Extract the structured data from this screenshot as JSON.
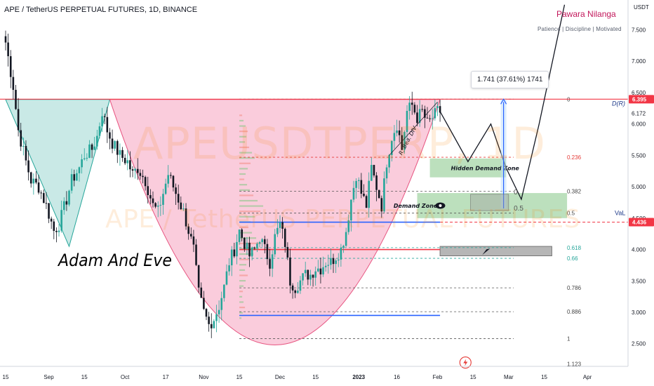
{
  "header": {
    "symbol_title": "APE / TetherUS PERPETUAL FUTURES, 1D, BINANCE",
    "author": "Pawara Nilanga",
    "motto": "Patience | Discipline | Motivated"
  },
  "watermark": {
    "line1": "APEUSDTPERP, 1D",
    "line2": "APE / TetherUS PERPETUAL FUTURES"
  },
  "annotations": {
    "pattern_label": "Adam And Eve",
    "measure_label": "1.741 (37.61%) 1741",
    "hidden_demand_zone": "Hidden Demand Zone",
    "demand_zone": "Demand Zone",
    "divergence_label": "R. Bea. DIV",
    "dr_label": "D(R)",
    "val_label": "VaL",
    "zone_mini_0": "0",
    "zone_mini_05": "0.5"
  },
  "colors": {
    "up": "#26a69a",
    "down": "#131722",
    "cup_fill": "#f8bbd0",
    "cup_stroke": "#e75480",
    "adam_fill": "#b2dfdb",
    "resistance": "#f23645",
    "support_blue": "#2962ff",
    "demand_zone": "#a5d6a7"
  },
  "chart_data": {
    "type": "candlestick",
    "title": "APE / TetherUS PERPETUAL FUTURES, 1D, BINANCE",
    "xlabel": "",
    "ylabel": "USDT",
    "ylim": [
      2.2,
      7.8
    ],
    "y_ticks": [
      "7.500",
      "7.000",
      "6.500",
      "6.172",
      "6.000",
      "5.500",
      "5.000",
      "4.500",
      "4.000",
      "3.500",
      "3.000",
      "2.500"
    ],
    "x_ticks": [
      "15",
      "Sep",
      "15",
      "Oct",
      "17",
      "Nov",
      "15",
      "Dec",
      "15",
      "2023",
      "16",
      "Feb",
      "15",
      "Mar",
      "15",
      "Apr"
    ],
    "x_domain_days": [
      0,
      245
    ],
    "x_tick_days": [
      0,
      17,
      31,
      47,
      63,
      78,
      92,
      108,
      122,
      139,
      154,
      170,
      184,
      198,
      212,
      229
    ],
    "price_labels": [
      {
        "value": 6.395,
        "text": "6.395",
        "color": "#f23645"
      },
      {
        "value": 4.436,
        "text": "4.436",
        "color": "#f23645"
      }
    ],
    "fib_levels": [
      {
        "ratio": "0",
        "price": 6.395
      },
      {
        "ratio": "0.236",
        "price": 5.47
      },
      {
        "ratio": "0.382",
        "price": 4.93
      },
      {
        "ratio": "0.5",
        "price": 4.58
      },
      {
        "ratio": "0.618",
        "price": 4.03
      },
      {
        "ratio": "0.66",
        "price": 3.86
      },
      {
        "ratio": "0.786",
        "price": 3.39
      },
      {
        "ratio": "0.886",
        "price": 3.01
      },
      {
        "ratio": "1",
        "price": 2.58
      },
      {
        "ratio": "1.123",
        "price": 2.18
      }
    ],
    "series": [
      {
        "kind": "close_path",
        "x_days": [
          0,
          3,
          5,
          8,
          10,
          13,
          16,
          19,
          21,
          24,
          26,
          29,
          31,
          34,
          36,
          38,
          40,
          42,
          45,
          48,
          50,
          52,
          55,
          58,
          60,
          62,
          64,
          66,
          68,
          70,
          72,
          74,
          76,
          78,
          80,
          82,
          84,
          86,
          88,
          90,
          92,
          94,
          96,
          98,
          100,
          102,
          104,
          106,
          108,
          110,
          112,
          114,
          116,
          118,
          120,
          122,
          124,
          126,
          128,
          130,
          132,
          134,
          136,
          138,
          140,
          142,
          144,
          146,
          148,
          150,
          152,
          154,
          156,
          158,
          160,
          162,
          164,
          166,
          168,
          170,
          171
        ],
        "close": [
          7.3,
          6.6,
          5.9,
          5.4,
          5.1,
          5.0,
          4.7,
          4.3,
          4.4,
          4.8,
          5.1,
          5.3,
          5.5,
          5.6,
          5.8,
          6.2,
          5.9,
          5.7,
          5.5,
          5.4,
          5.2,
          5.3,
          5.1,
          4.7,
          4.6,
          4.9,
          5.2,
          5.0,
          4.8,
          4.6,
          4.3,
          4.0,
          3.3,
          3.0,
          2.8,
          2.9,
          3.1,
          3.4,
          3.8,
          4.0,
          4.3,
          4.1,
          3.9,
          4.0,
          4.2,
          4.0,
          3.8,
          4.2,
          4.4,
          4.1,
          3.5,
          3.4,
          3.5,
          3.6,
          3.6,
          3.7,
          3.7,
          3.8,
          3.8,
          3.9,
          4.0,
          4.3,
          4.8,
          5.2,
          4.9,
          4.7,
          5.3,
          5.0,
          4.7,
          5.4,
          5.8,
          6.0,
          5.6,
          6.2,
          6.3,
          6.1,
          6.2,
          6.0,
          6.1,
          6.2,
          6.2
        ]
      },
      {
        "kind": "projection",
        "x_days": [
          171,
          182,
          191,
          197,
          203,
          210,
          220
        ],
        "price": [
          6.2,
          5.4,
          6.0,
          5.3,
          4.8,
          6.0,
          7.9
        ]
      }
    ],
    "zones": [
      {
        "label": "Hidden Demand Zone",
        "day_start": 167,
        "day_end": 197,
        "low": 5.15,
        "high": 5.45
      },
      {
        "label": "Demand Zone",
        "day_start": 162,
        "day_end": 221,
        "low": 4.5,
        "high": 4.9
      },
      {
        "label": "",
        "day_start": 171,
        "day_end": 215,
        "low": 3.9,
        "high": 4.05,
        "color": "gray"
      }
    ],
    "support_lines": [
      {
        "price": 4.436,
        "day_start": 92,
        "day_end": 171,
        "color": "#2962ff"
      },
      {
        "price": 4.0,
        "day_start": 92,
        "day_end": 171,
        "color": "#f23645"
      },
      {
        "price": 2.95,
        "day_start": 92,
        "day_end": 171,
        "color": "#2962ff"
      }
    ],
    "measure": {
      "day": 196,
      "from": 4.654,
      "to": 6.395,
      "label": "1.741 (37.61%) 1741"
    },
    "pattern_adam": {
      "days": [
        0,
        25,
        41
      ],
      "top": 6.39,
      "bottom": 4.05
    },
    "pattern_cup": {
      "day_start": 41,
      "day_end": 171,
      "top": 6.39,
      "bottom": 2.48
    }
  }
}
